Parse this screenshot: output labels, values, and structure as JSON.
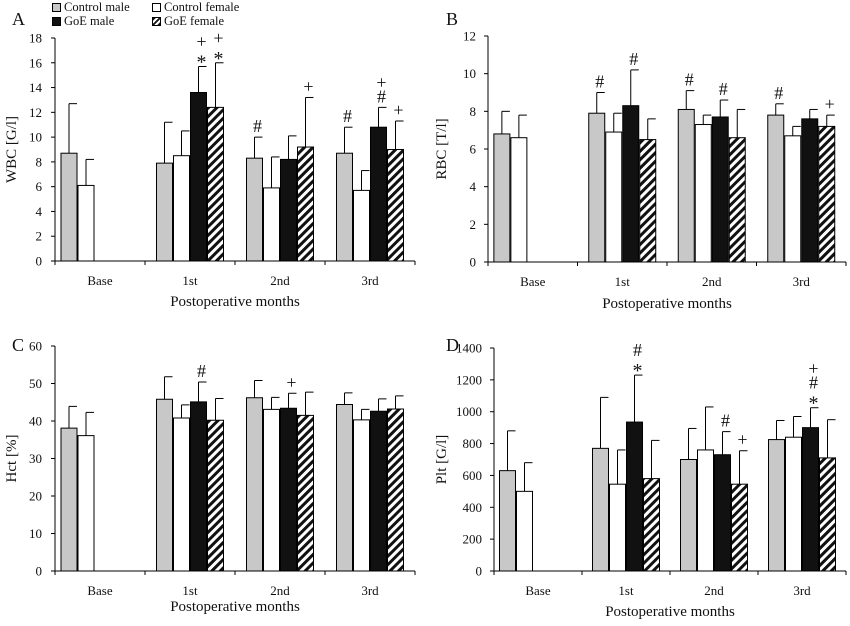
{
  "legend": [
    {
      "label": "Control male",
      "color": "#c8c8c8"
    },
    {
      "label": "Control female",
      "color": "#ffffff"
    },
    {
      "label": "GoE male",
      "color": "#111111"
    },
    {
      "label": "GoE female",
      "color": "hatched"
    }
  ],
  "chart_data": [
    {
      "panel": "A",
      "type": "bar",
      "ylabel": "WBC [G/l]",
      "xlabel": "Postoperative months",
      "ylim": [
        0,
        18
      ],
      "ystep": 2,
      "categories": [
        "Base",
        "1st",
        "2nd",
        "3rd"
      ],
      "series": [
        {
          "name": "Control male",
          "values": [
            8.7,
            7.9,
            8.3,
            8.7
          ],
          "errors": [
            4.0,
            3.3,
            1.7,
            2.1
          ]
        },
        {
          "name": "Control female",
          "values": [
            6.1,
            8.5,
            5.9,
            5.7
          ],
          "errors": [
            2.1,
            2.0,
            2.5,
            1.6
          ]
        },
        {
          "name": "GoE male",
          "values": [
            null,
            13.6,
            8.2,
            10.8
          ],
          "errors": [
            null,
            2.1,
            1.9,
            1.6
          ]
        },
        {
          "name": "GoE female",
          "values": [
            null,
            12.4,
            9.2,
            9.0
          ],
          "errors": [
            null,
            3.6,
            4.0,
            2.3
          ]
        }
      ],
      "annotations": [
        {
          "category": 1,
          "series": 2,
          "symbols": [
            "*",
            "+"
          ]
        },
        {
          "category": 1,
          "series": 3,
          "symbols": [
            "*",
            "+"
          ]
        },
        {
          "category": 2,
          "series": 0,
          "symbols": [
            "#"
          ]
        },
        {
          "category": 2,
          "series": 3,
          "symbols": [
            "+"
          ]
        },
        {
          "category": 3,
          "series": 0,
          "symbols": [
            "#"
          ]
        },
        {
          "category": 3,
          "series": 2,
          "symbols": [
            "#",
            "+"
          ]
        },
        {
          "category": 3,
          "series": 3,
          "symbols": [
            "+"
          ]
        }
      ]
    },
    {
      "panel": "B",
      "type": "bar",
      "ylabel": "RBC [T/l]",
      "xlabel": "Postoperative months",
      "ylim": [
        0,
        12
      ],
      "ystep": 2,
      "categories": [
        "Base",
        "1st",
        "2nd",
        "3rd"
      ],
      "series": [
        {
          "name": "Control male",
          "values": [
            6.8,
            7.9,
            8.1,
            7.8
          ],
          "errors": [
            1.2,
            1.1,
            1.0,
            0.6
          ]
        },
        {
          "name": "Control female",
          "values": [
            6.6,
            6.9,
            7.3,
            6.7
          ],
          "errors": [
            1.2,
            1.0,
            0.5,
            0.5
          ]
        },
        {
          "name": "GoE male",
          "values": [
            null,
            8.3,
            7.7,
            7.6
          ],
          "errors": [
            null,
            1.9,
            0.9,
            0.5
          ]
        },
        {
          "name": "GoE female",
          "values": [
            null,
            6.5,
            6.6,
            7.2
          ],
          "errors": [
            null,
            1.1,
            1.5,
            0.6
          ]
        }
      ],
      "annotations": [
        {
          "category": 1,
          "series": 0,
          "symbols": [
            "#"
          ]
        },
        {
          "category": 1,
          "series": 2,
          "symbols": [
            "#"
          ]
        },
        {
          "category": 2,
          "series": 0,
          "symbols": [
            "#"
          ]
        },
        {
          "category": 2,
          "series": 2,
          "symbols": [
            "#"
          ]
        },
        {
          "category": 3,
          "series": 0,
          "symbols": [
            "#"
          ]
        },
        {
          "category": 3,
          "series": 3,
          "symbols": [
            "+"
          ]
        }
      ]
    },
    {
      "panel": "C",
      "type": "bar",
      "ylabel": "Hct [%]",
      "xlabel": "Postoperative months",
      "ylim": [
        0,
        60
      ],
      "ystep": 10,
      "categories": [
        "Base",
        "1st",
        "2nd",
        "3rd"
      ],
      "series": [
        {
          "name": "Control male",
          "values": [
            38.1,
            45.8,
            46.2,
            44.4
          ],
          "errors": [
            5.8,
            6.0,
            4.6,
            3.1
          ]
        },
        {
          "name": "Control female",
          "values": [
            36.1,
            40.8,
            43.1,
            40.3
          ],
          "errors": [
            6.2,
            3.5,
            3.2,
            2.8
          ]
        },
        {
          "name": "GoE male",
          "values": [
            null,
            45.1,
            43.4,
            42.6
          ],
          "errors": [
            null,
            5.3,
            4.0,
            3.3
          ]
        },
        {
          "name": "GoE female",
          "values": [
            null,
            40.2,
            41.5,
            43.2
          ],
          "errors": [
            null,
            5.8,
            6.2,
            3.5
          ]
        }
      ],
      "annotations": [
        {
          "category": 1,
          "series": 2,
          "symbols": [
            "#"
          ]
        },
        {
          "category": 2,
          "series": 2,
          "symbols": [
            "+"
          ]
        }
      ]
    },
    {
      "panel": "D",
      "type": "bar",
      "ylabel": "Plt [G/l]",
      "xlabel": "Postoperative months",
      "ylim": [
        0,
        1400
      ],
      "ystep": 200,
      "categories": [
        "Base",
        "1st",
        "2nd",
        "3rd"
      ],
      "series": [
        {
          "name": "Control male",
          "values": [
            630,
            770,
            700,
            825
          ],
          "errors": [
            250,
            320,
            195,
            120
          ]
        },
        {
          "name": "Control female",
          "values": [
            500,
            545,
            760,
            840
          ],
          "errors": [
            180,
            215,
            270,
            130
          ]
        },
        {
          "name": "GoE male",
          "values": [
            null,
            935,
            730,
            900
          ],
          "errors": [
            null,
            295,
            145,
            125
          ]
        },
        {
          "name": "GoE female",
          "values": [
            null,
            580,
            545,
            710
          ],
          "errors": [
            null,
            240,
            210,
            240
          ]
        }
      ],
      "annotations": [
        {
          "category": 1,
          "series": 2,
          "symbols": [
            "*",
            "#"
          ]
        },
        {
          "category": 2,
          "series": 2,
          "symbols": [
            "#"
          ]
        },
        {
          "category": 2,
          "series": 3,
          "symbols": [
            "+"
          ]
        },
        {
          "category": 3,
          "series": 2,
          "symbols": [
            "*",
            "#",
            "+"
          ]
        }
      ]
    }
  ]
}
